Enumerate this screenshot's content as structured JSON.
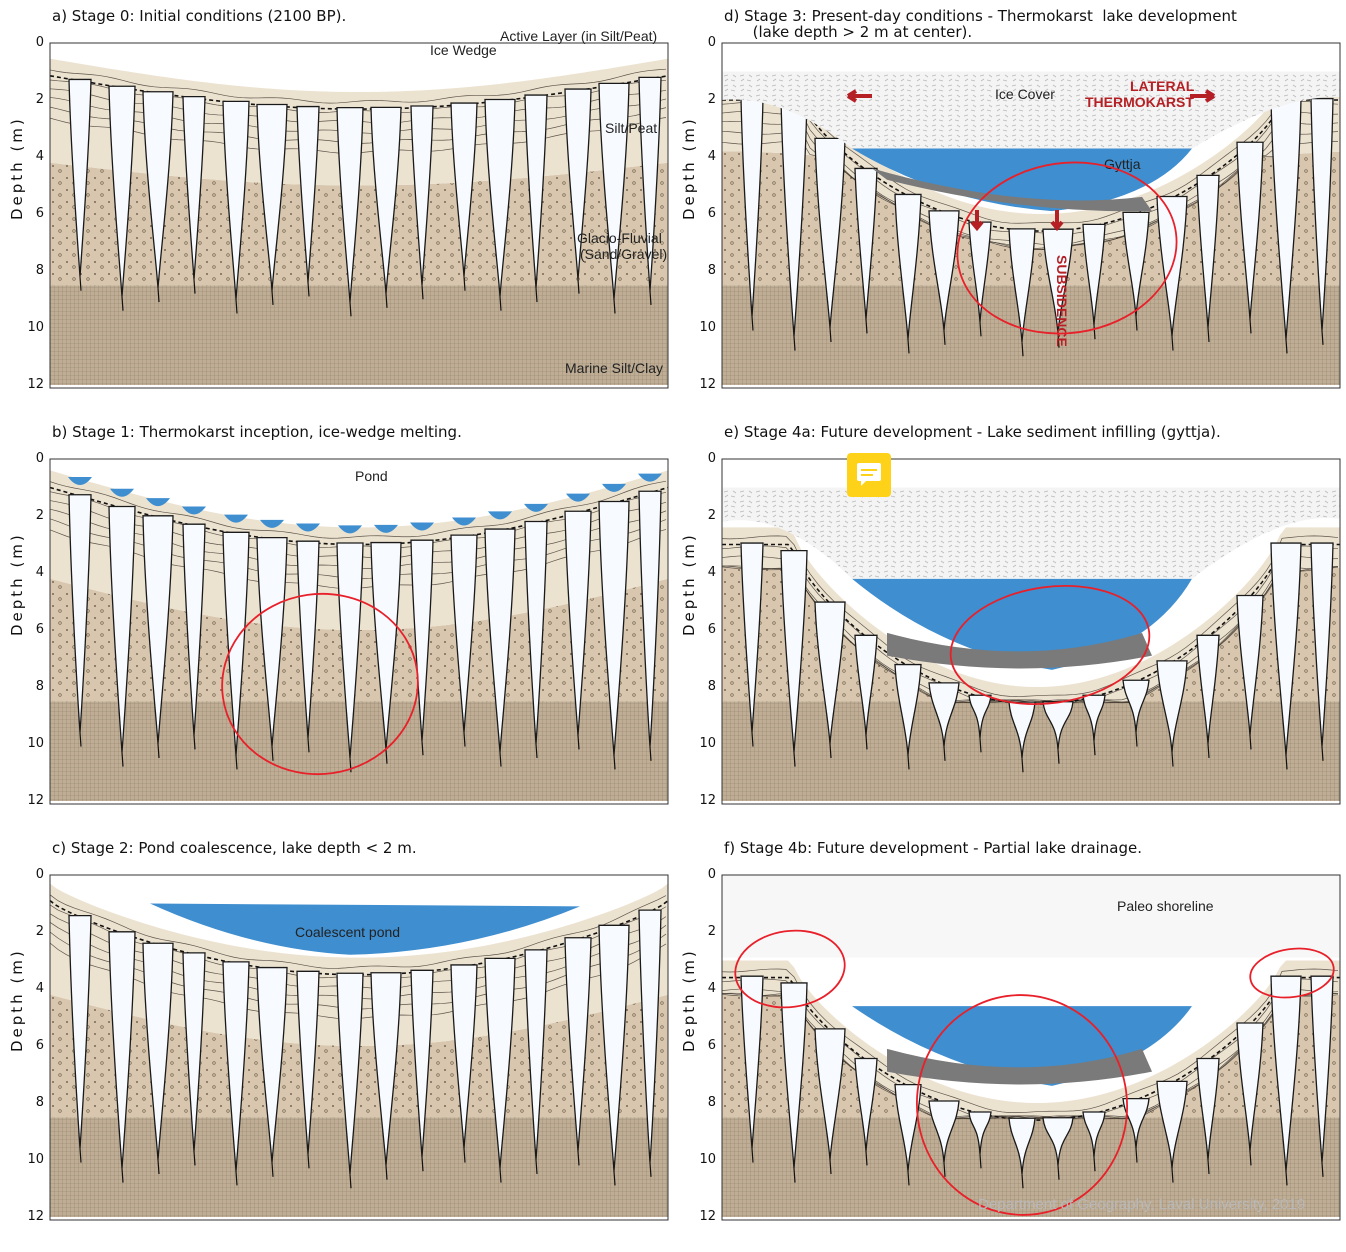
{
  "panels": [
    {
      "id": "a",
      "title": "a) Stage 0: Initial conditions (2100 BP).",
      "ylabel": "Depth (m)",
      "ticks": [
        "0",
        "2",
        "4",
        "6",
        "8",
        "10",
        "12"
      ],
      "labels": {
        "active_layer": "Active Layer (in Silt/Peat)",
        "ice_wedge": "Ice Wedge",
        "silt_peat": "Silt/Peat",
        "glacio": "Glacio-Fluvial",
        "glacio2": "(Sand/Gravel)",
        "marine": "Marine Silt/Clay"
      }
    },
    {
      "id": "b",
      "title": "b) Stage 1: Thermokarst inception, ice-wedge melting.",
      "ylabel": "Depth (m)",
      "ticks": [
        "0",
        "2",
        "4",
        "6",
        "8",
        "10",
        "12"
      ],
      "labels": {
        "pond": "Pond"
      }
    },
    {
      "id": "c",
      "title": "c) Stage 2: Pond coalescence, lake depth < 2 m.",
      "ylabel": "Depth (m)",
      "ticks": [
        "0",
        "2",
        "4",
        "6",
        "8",
        "10",
        "12"
      ],
      "labels": {
        "coalescent": "Coalescent pond"
      }
    },
    {
      "id": "d",
      "title": "d) Stage 3: Present-day conditions - Thermokarst  lake development\n      (lake depth > 2 m at center).",
      "ylabel": "Depth (m)",
      "ticks": [
        "0",
        "2",
        "4",
        "6",
        "8",
        "10",
        "12"
      ],
      "labels": {
        "ice_cover": "Ice Cover",
        "lateral": "LATERAL",
        "thermokarst": "THERMOKARST",
        "gyttja": "Gyttja",
        "subsidence": "SUBSIDENCE"
      }
    },
    {
      "id": "e",
      "title": "e) Stage 4a: Future development - Lake sediment infilling (gyttja).",
      "ylabel": "Depth (m)",
      "ticks": [
        "0",
        "2",
        "4",
        "6",
        "8",
        "10",
        "12"
      ],
      "labels": {}
    },
    {
      "id": "f",
      "title": "f) Stage 4b: Future development - Partial lake drainage.",
      "ylabel": "Depth (m)",
      "ticks": [
        "0",
        "2",
        "4",
        "6",
        "8",
        "10",
        "12"
      ],
      "labels": {
        "paleo": "Paleo shoreline"
      }
    }
  ],
  "credit": "Department of Geography, Laval University, 2019",
  "colors": {
    "silt": "#ece2d0",
    "glacio": "#d8c7ae",
    "marine": "#bfae95",
    "water": "#3f8ed0",
    "gyttja": "#7a7a7a",
    "ice": "#ffffff",
    "snow": "#f2f2f2",
    "annotation": "#e8202a",
    "arrow": "#b52025"
  }
}
